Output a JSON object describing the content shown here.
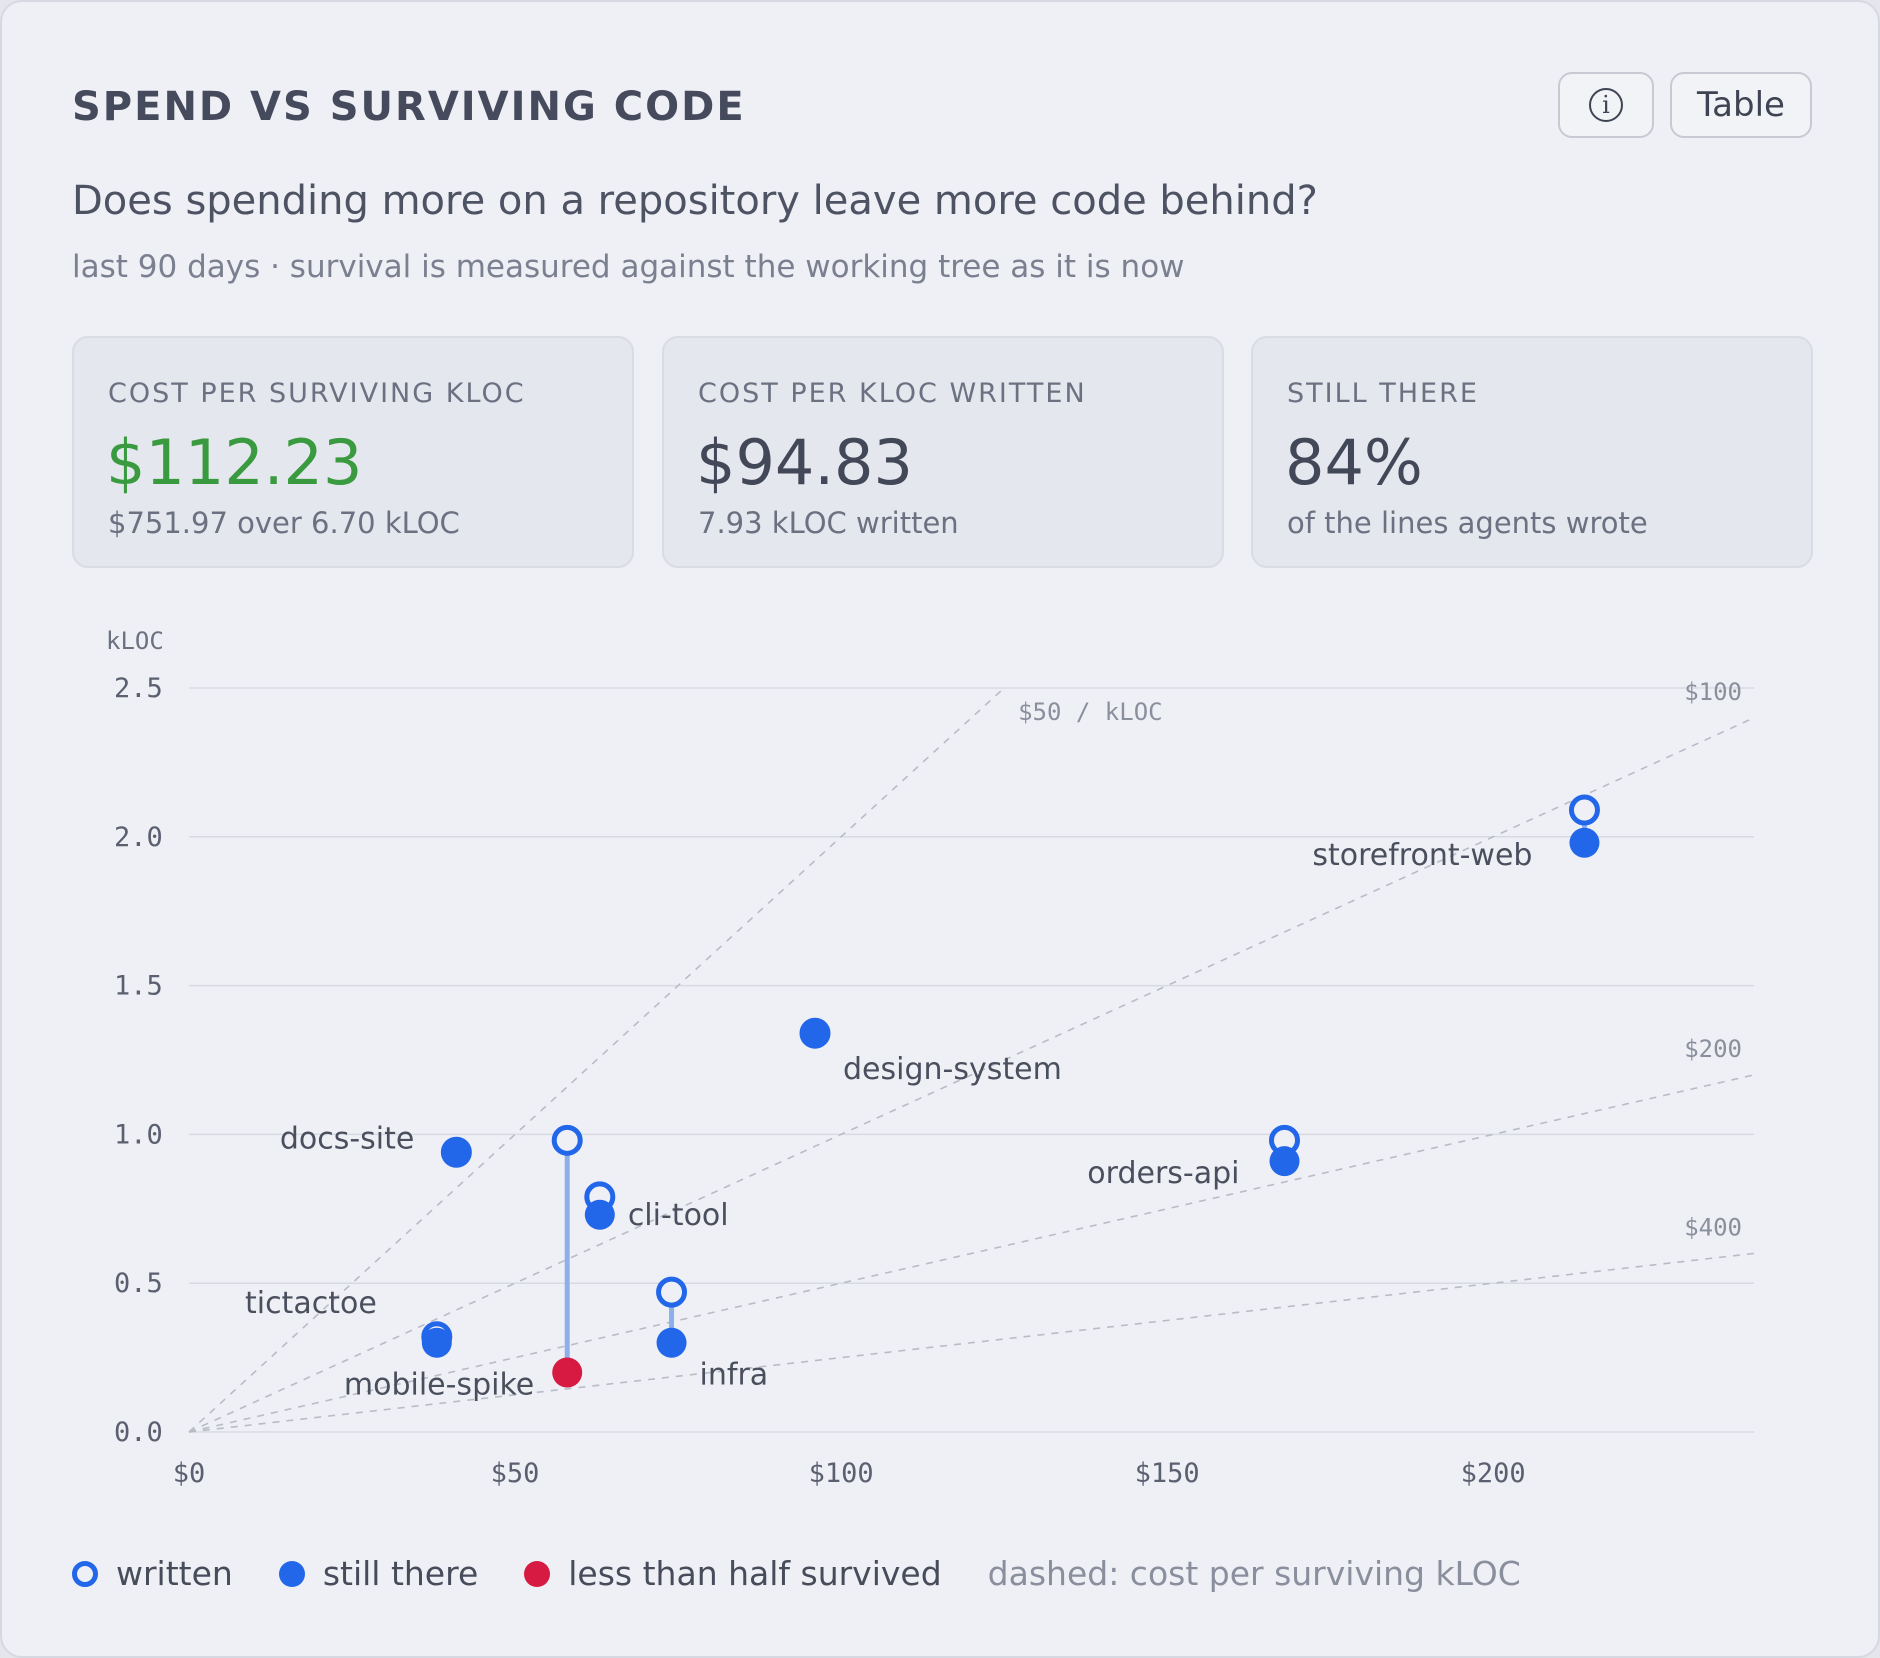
{
  "header": {
    "title": "SPEND VS SURVIVING CODE",
    "subtitle": "Does spending more on a repository leave more code behind?",
    "caption": "last 90 days · survival is measured against the working tree as it is now",
    "table_button": "Table",
    "info_glyph": "i"
  },
  "kpis": [
    {
      "label": "COST PER SURVIVING KLOC",
      "value": "$112.23",
      "note": "$751.97 over 6.70 kLOC"
    },
    {
      "label": "COST PER KLOC WRITTEN",
      "value": "$94.83",
      "note": "7.93 kLOC written"
    },
    {
      "label": "STILL THERE",
      "value": "84%",
      "note": "of the lines agents wrote"
    }
  ],
  "legend": {
    "written": "written",
    "still_there": "still there",
    "less_than_half": "less than half survived",
    "note": "dashed: cost per surviving kLOC"
  },
  "colors": {
    "good": "#3a9a3f",
    "series": "#2267ea",
    "warning": "#d61a42",
    "connector": "#8db0ec"
  },
  "chart_data": {
    "type": "scatter",
    "xlabel": "",
    "ylabel": "kLOC",
    "xlim": [
      0,
      240
    ],
    "ylim": [
      0,
      2.5
    ],
    "x_ticks": [
      {
        "v": 0,
        "label": "$0"
      },
      {
        "v": 50,
        "label": "$50"
      },
      {
        "v": 100,
        "label": "$100"
      },
      {
        "v": 150,
        "label": "$150"
      },
      {
        "v": 200,
        "label": "$200"
      }
    ],
    "y_ticks": [
      {
        "v": 0,
        "label": "0.0"
      },
      {
        "v": 0.5,
        "label": "0.5"
      },
      {
        "v": 1.0,
        "label": "1.0"
      },
      {
        "v": 1.5,
        "label": "1.5"
      },
      {
        "v": 2.0,
        "label": "2.0"
      },
      {
        "v": 2.5,
        "label": "2.5"
      }
    ],
    "grid": true,
    "reference_lines": [
      {
        "cost_per_kloc": 50,
        "label": "$50 / kLOC"
      },
      {
        "cost_per_kloc": 100,
        "label": "$100"
      },
      {
        "cost_per_kloc": 200,
        "label": "$200"
      },
      {
        "cost_per_kloc": 400,
        "label": "$400"
      }
    ],
    "points": [
      {
        "name": "storefront-web",
        "cost": 214,
        "written": 2.09,
        "surviving": 1.98,
        "low_survival": false
      },
      {
        "name": "design-system",
        "cost": 96,
        "written": 1.34,
        "surviving": 1.34,
        "low_survival": false
      },
      {
        "name": "docs-site",
        "cost": 41,
        "written": 0.94,
        "surviving": 0.94,
        "low_survival": false
      },
      {
        "name": "orders-api",
        "cost": 168,
        "written": 0.98,
        "surviving": 0.91,
        "low_survival": false
      },
      {
        "name": "cli-tool",
        "cost": 63,
        "written": 0.79,
        "surviving": 0.73,
        "low_survival": false
      },
      {
        "name": "mobile-spike",
        "cost": 58,
        "written": 0.98,
        "surviving": 0.2,
        "low_survival": true
      },
      {
        "name": "infra",
        "cost": 74,
        "written": 0.47,
        "surviving": 0.3,
        "low_survival": false
      },
      {
        "name": "tictactoe",
        "cost": 38,
        "written": 0.32,
        "surviving": 0.3,
        "low_survival": false
      }
    ]
  }
}
